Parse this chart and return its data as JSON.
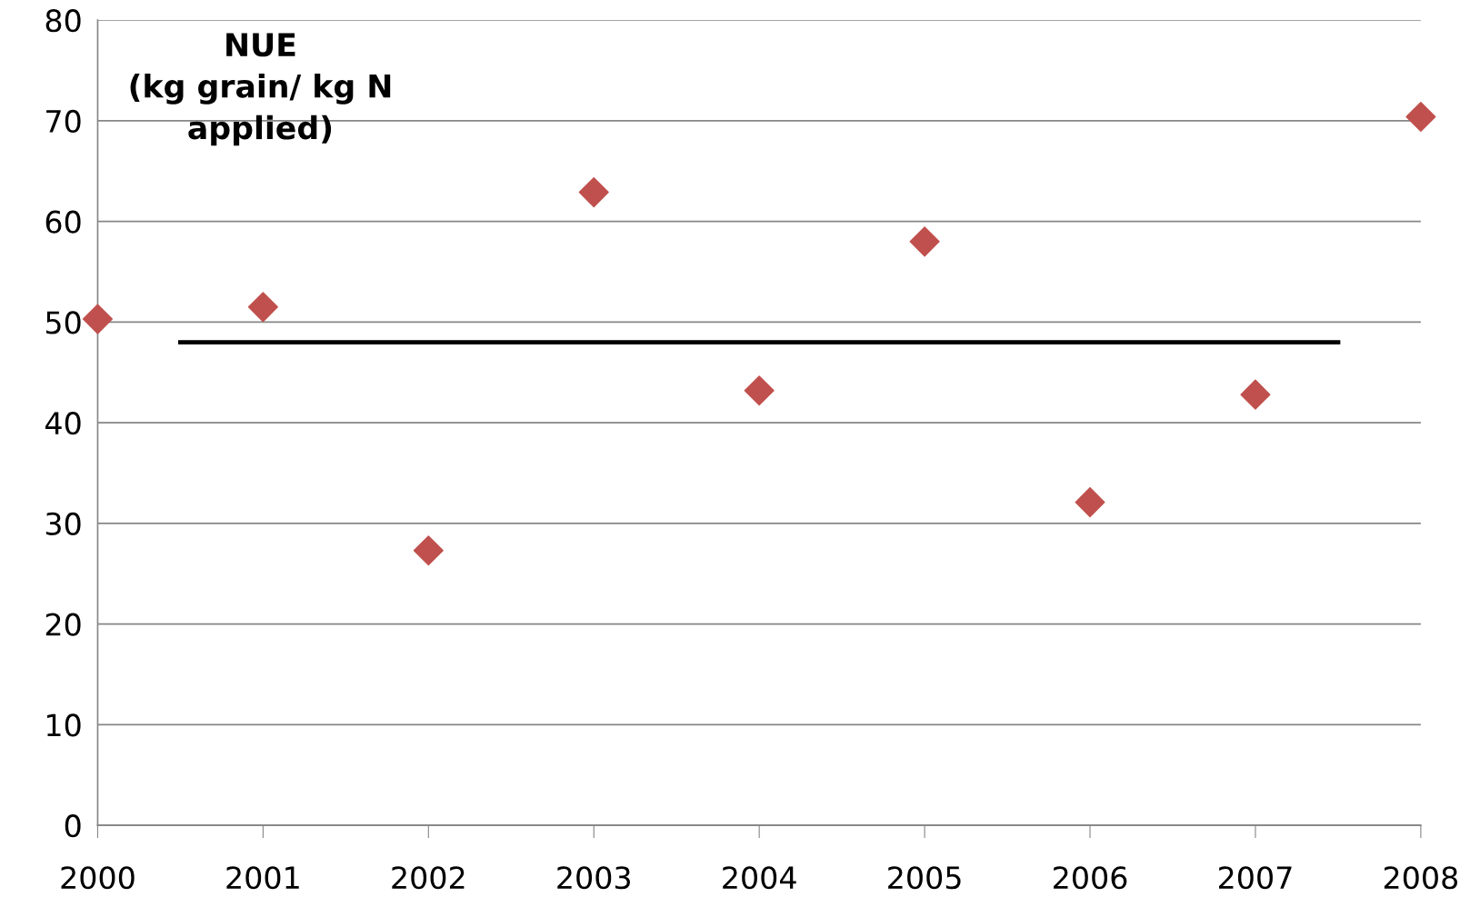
{
  "chart_data": {
    "type": "scatter",
    "title": "NUE\n(kg grain/ kg N\napplied)",
    "x": [
      2000,
      2001,
      2002,
      2003,
      2004,
      2005,
      2006,
      2007,
      2008
    ],
    "series": [
      {
        "color": "#c0504d",
        "marker": "diamond",
        "values": [
          50.3,
          51.5,
          27.3,
          62.9,
          43.2,
          58.0,
          32.1,
          42.8,
          70.4
        ]
      },
      {
        "type": "line",
        "color": "#000000",
        "marker": "none",
        "line_style": "solid",
        "x": [
          2000.5,
          2007.5
        ],
        "values": [
          48,
          48
        ]
      }
    ],
    "xlim": [
      2000,
      2008
    ],
    "xticks": [
      2000,
      2001,
      2002,
      2003,
      2004,
      2005,
      2006,
      2007,
      2008
    ],
    "ylim": [
      0,
      80
    ],
    "yticks": [
      0,
      10,
      20,
      30,
      40,
      50,
      60,
      70,
      80
    ],
    "grid": "y"
  }
}
